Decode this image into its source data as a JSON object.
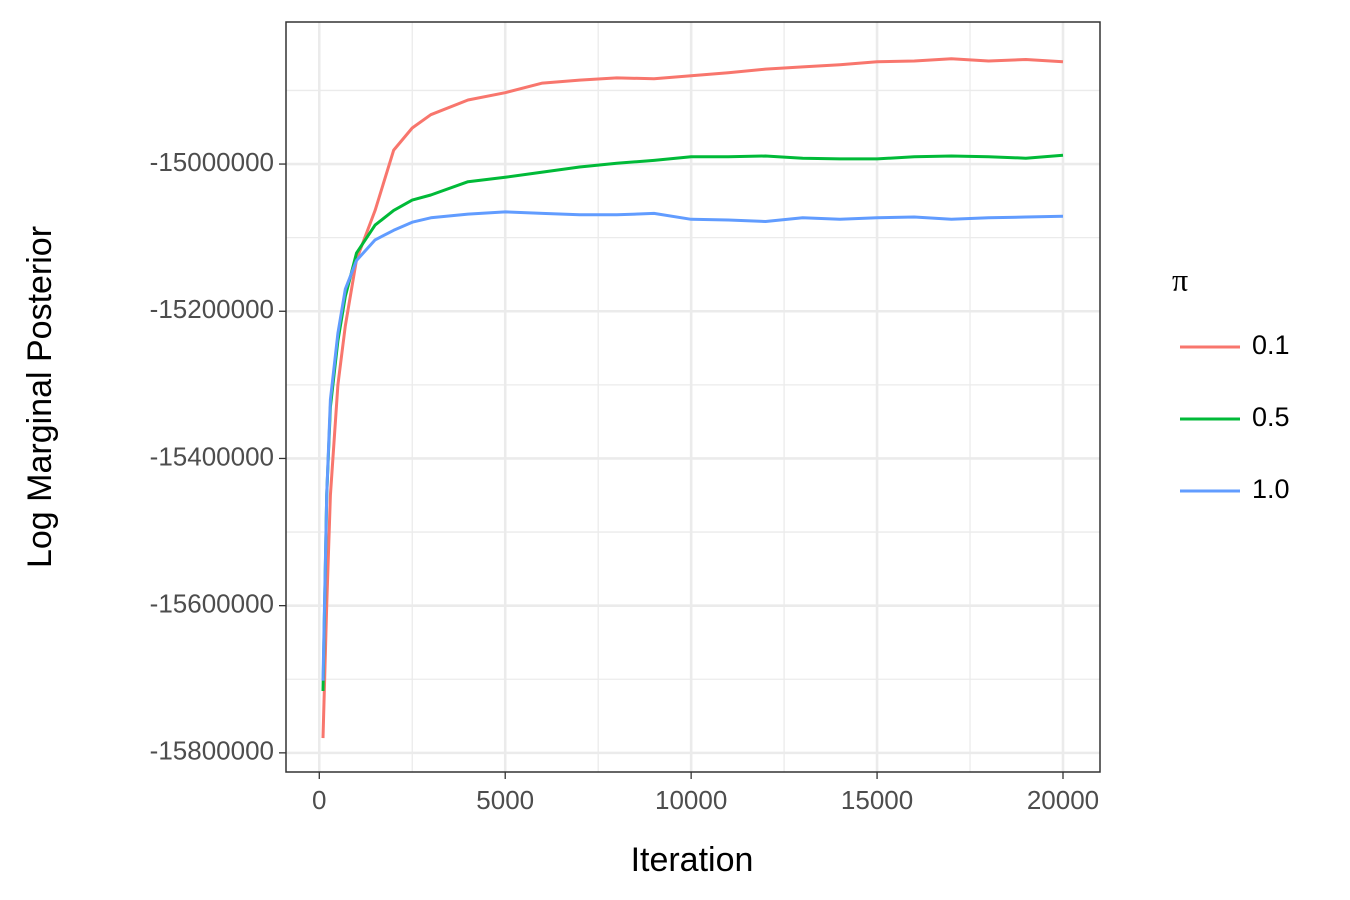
{
  "chart_data": {
    "type": "line",
    "x_label": "Iteration",
    "y_label": "Log Marginal Posterior",
    "legend_title": "π",
    "legend_position": "right",
    "grid": true,
    "xlim": [
      -895,
      20995
    ],
    "ylim": [
      -15826000,
      -14807000
    ],
    "xticks": [
      0,
      5000,
      10000,
      15000,
      20000
    ],
    "yticks": [
      -15800000,
      -15600000,
      -15400000,
      -15200000,
      -15000000
    ],
    "xminor_ticks": [
      2500,
      7500,
      12500,
      17500
    ],
    "yminor_ticks": [
      -15700000,
      -15500000,
      -15300000,
      -15100000,
      -14900000
    ],
    "x": [
      100,
      200,
      300,
      500,
      700,
      1000,
      1500,
      2000,
      2500,
      3000,
      4000,
      5000,
      6000,
      7000,
      8000,
      9000,
      10000,
      11000,
      12000,
      13000,
      14000,
      15000,
      16000,
      17000,
      18000,
      19000,
      20000
    ],
    "series": [
      {
        "name": "0.1",
        "color": "#F8766D",
        "values": [
          -15780000,
          -15600000,
          -15450000,
          -15300000,
          -15220000,
          -15130000,
          -15063000,
          -14981000,
          -14951000,
          -14933000,
          -14913000,
          -14903000,
          -14890000,
          -14886000,
          -14883000,
          -14884000,
          -14880000,
          -14876000,
          -14871000,
          -14868000,
          -14865000,
          -14861000,
          -14860000,
          -14857000,
          -14860000,
          -14858000,
          -14861000
        ]
      },
      {
        "name": "0.5",
        "color": "#00BA38",
        "values": [
          -15716000,
          -15450000,
          -15330000,
          -15240000,
          -15180000,
          -15121000,
          -15083000,
          -15063000,
          -15049000,
          -15042000,
          -15024000,
          -15018000,
          -15011000,
          -15004000,
          -14999000,
          -14995000,
          -14990000,
          -14990000,
          -14989000,
          -14992000,
          -14993000,
          -14993000,
          -14990000,
          -14989000,
          -14990000,
          -14992000,
          -14988000
        ]
      },
      {
        "name": "1.0",
        "color": "#619CFF",
        "values": [
          -15702000,
          -15450000,
          -15320000,
          -15230000,
          -15170000,
          -15131000,
          -15103000,
          -15090000,
          -15079000,
          -15073000,
          -15068000,
          -15065000,
          -15067000,
          -15069000,
          -15069000,
          -15067000,
          -15075000,
          -15076000,
          -15078000,
          -15073000,
          -15075000,
          -15073000,
          -15072000,
          -15075000,
          -15073000,
          -15072000,
          -15071000
        ]
      }
    ]
  }
}
